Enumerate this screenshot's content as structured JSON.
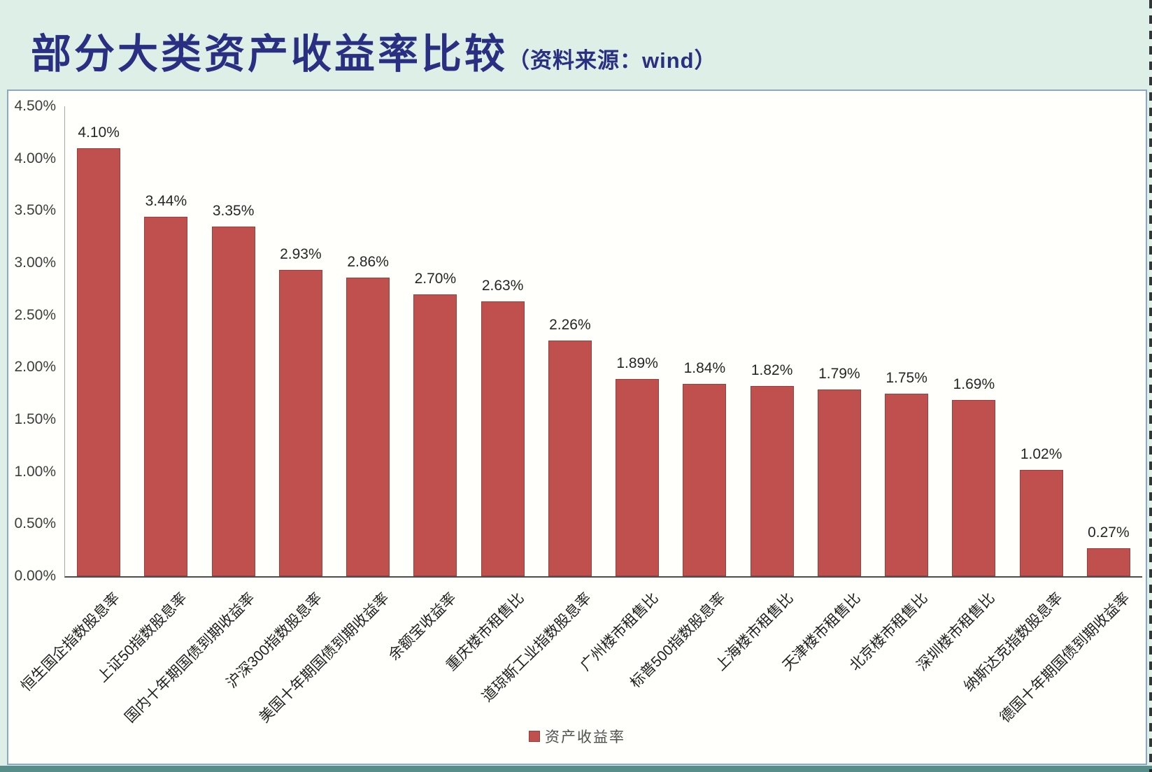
{
  "title": {
    "text": "部分大类资产收益率比较",
    "source": "（资料来源：wind）"
  },
  "legend": {
    "label": "资产收益率",
    "marker_color": "#c0504d"
  },
  "colors": {
    "bar": "#c0504d",
    "bar_border": "#9c3f3c",
    "title_text": "#2a2f82",
    "title_background": "#ddefe7",
    "chart_background": "#fffffb",
    "chart_frame_border": "#8ca7c1",
    "bottom_strip": "#578e89"
  },
  "chart_data": {
    "type": "bar",
    "title": "部分大类资产收益率比较",
    "source": "wind",
    "series_name": "资产收益率",
    "categories": [
      "恒生国企指数股息率",
      "上证50指数股息率",
      "国内十年期国债到期收益率",
      "沪深300指数股息率",
      "美国十年期国债到期收益率",
      "余额宝收益率",
      "重庆楼市租售比",
      "道琼斯工业指数股息率",
      "广州楼市租售比",
      "标普500指数股息率",
      "上海楼市租售比",
      "天津楼市租售比",
      "北京楼市租售比",
      "深圳楼市租售比",
      "纳斯达克指数股息率",
      "德国十年期国债到期收益率"
    ],
    "values": [
      4.1,
      3.44,
      3.35,
      2.93,
      2.86,
      2.7,
      2.63,
      2.26,
      1.89,
      1.84,
      1.82,
      1.79,
      1.75,
      1.69,
      1.02,
      0.27
    ],
    "value_labels": [
      "4.10%",
      "3.44%",
      "3.35%",
      "2.93%",
      "2.86%",
      "2.70%",
      "2.63%",
      "2.26%",
      "1.89%",
      "1.84%",
      "1.82%",
      "1.79%",
      "1.75%",
      "1.69%",
      "1.02%",
      "0.27%"
    ],
    "xlabel": "",
    "ylabel": "",
    "ylim": [
      0,
      4.5
    ],
    "yticks": [
      "0.00%",
      "0.50%",
      "1.00%",
      "1.50%",
      "2.00%",
      "2.50%",
      "3.00%",
      "3.50%",
      "4.00%",
      "4.50%"
    ],
    "grid": false,
    "legend_position": "bottom",
    "bar_color": "#c0504d",
    "x_label_rotation_deg": 45
  }
}
